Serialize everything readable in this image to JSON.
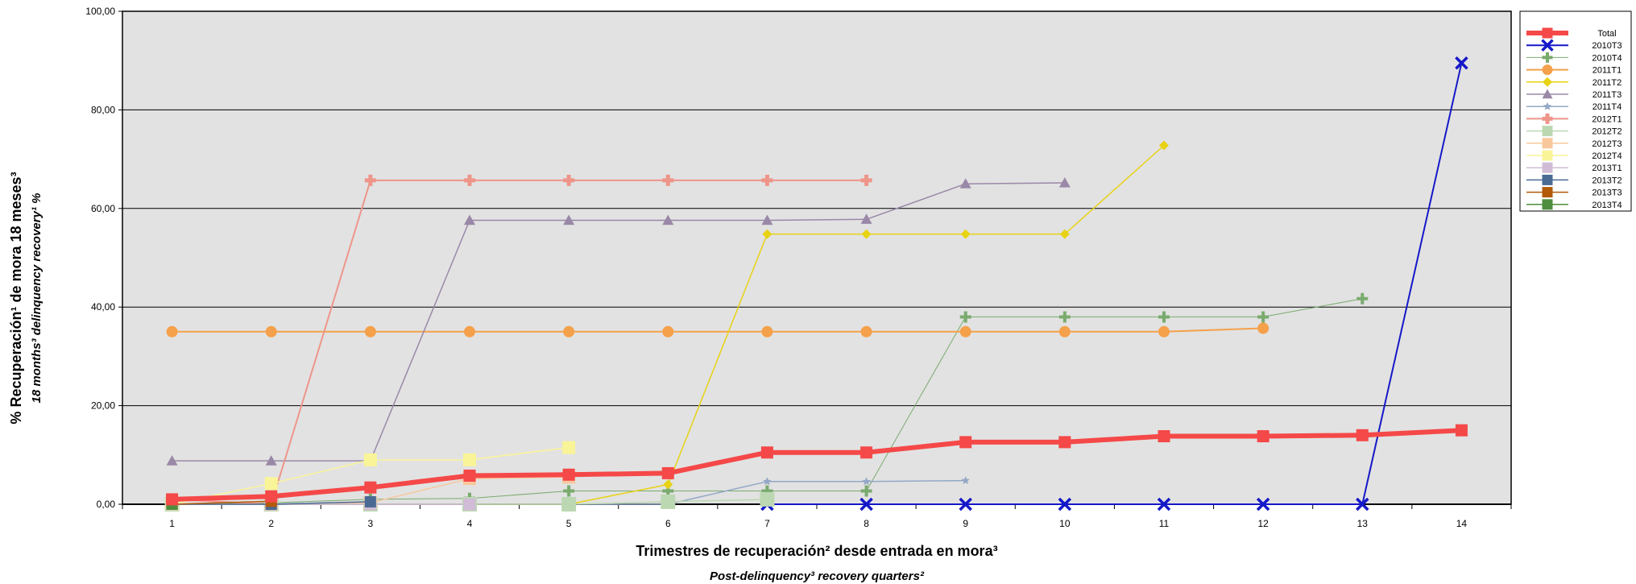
{
  "chart_data": {
    "type": "line",
    "title": "",
    "ylabel": "% Recuperación¹ de mora 18 meses³",
    "ylabel_sub": "18 months³ delinquency recovery¹ %",
    "xlabel": "Trimestres de recuperación² desde entrada en mora³",
    "xlabel_sub": "Post-delinquency³ recovery quarters²",
    "x": [
      1,
      2,
      3,
      4,
      5,
      6,
      7,
      8,
      9,
      10,
      11,
      12,
      13,
      14
    ],
    "ylim": [
      0,
      100
    ],
    "yticks": [
      "0,00",
      "20,00",
      "40,00",
      "60,00",
      "80,00",
      "100,00"
    ],
    "grid": true,
    "legend_position": "right",
    "background": "#e2e2e2",
    "series": [
      {
        "name": "Total",
        "color": "#f54848",
        "marker": "square",
        "width": 6,
        "size": 15,
        "values": [
          1.0,
          1.6,
          3.4,
          5.8,
          6.0,
          6.3,
          10.5,
          10.5,
          12.6,
          12.6,
          13.8,
          13.8,
          14.0,
          15.0
        ]
      },
      {
        "name": "2010T3",
        "color": "#1518c8",
        "marker": "x",
        "width": 2,
        "size": 14,
        "values": [
          null,
          null,
          null,
          null,
          null,
          null,
          0.0,
          0.0,
          0.0,
          0.0,
          0.0,
          0.0,
          0.0,
          89.5
        ]
      },
      {
        "name": "2010T4",
        "color": "#7aab6e",
        "marker": "plus",
        "width": 1,
        "size": 14,
        "values": [
          0.0,
          0.3,
          1.0,
          1.2,
          2.7,
          2.7,
          2.7,
          2.7,
          38.0,
          38.0,
          38.0,
          38.0,
          41.7,
          null
        ]
      },
      {
        "name": "2011T1",
        "color": "#f5a04a",
        "marker": "circle",
        "width": 2,
        "size": 14,
        "values": [
          35.0,
          35.0,
          35.0,
          35.0,
          35.0,
          35.0,
          35.0,
          35.0,
          35.0,
          35.0,
          35.0,
          35.7,
          null,
          null
        ]
      },
      {
        "name": "2011T2",
        "color": "#e8d214",
        "marker": "diamond",
        "width": 1.5,
        "size": 12,
        "values": [
          0.0,
          0.0,
          0.0,
          0.0,
          0.0,
          4.0,
          54.8,
          54.8,
          54.8,
          54.8,
          72.8,
          null,
          null,
          null
        ]
      },
      {
        "name": "2011T3",
        "color": "#9a88a8",
        "marker": "triangle",
        "width": 1.5,
        "size": 14,
        "values": [
          8.8,
          8.8,
          8.8,
          57.6,
          57.6,
          57.6,
          57.6,
          57.8,
          65.0,
          65.2,
          null,
          null,
          null,
          null
        ]
      },
      {
        "name": "2011T4",
        "color": "#93a8c6",
        "marker": "star",
        "width": 1.5,
        "size": 11,
        "values": [
          0.0,
          0.0,
          0.0,
          0.0,
          0.0,
          0.0,
          4.6,
          4.6,
          4.8,
          null,
          null,
          null,
          null,
          null
        ]
      },
      {
        "name": "2012T1",
        "color": "#ee958a",
        "marker": "plus-bold",
        "width": 2,
        "size": 14,
        "values": [
          1.0,
          0.0,
          65.7,
          65.7,
          65.7,
          65.7,
          65.7,
          65.7,
          null,
          null,
          null,
          null,
          null,
          null
        ]
      },
      {
        "name": "2012T2",
        "color": "#bcd8b2",
        "marker": "square",
        "width": 1.5,
        "size": 18,
        "values": [
          0.0,
          0.0,
          0.0,
          0.0,
          0.0,
          0.5,
          1.0,
          null,
          null,
          null,
          null,
          null,
          null,
          null
        ]
      },
      {
        "name": "2012T3",
        "color": "#f8c89c",
        "marker": "square",
        "width": 1.5,
        "size": 16,
        "values": [
          0.0,
          0.0,
          0.3,
          5.2,
          5.5,
          null,
          null,
          null,
          null,
          null,
          null,
          null,
          null,
          null
        ]
      },
      {
        "name": "2012T4",
        "color": "#faf498",
        "marker": "square",
        "width": 1.5,
        "size": 16,
        "values": [
          0.0,
          4.2,
          9.0,
          9.0,
          11.5,
          null,
          null,
          null,
          null,
          null,
          null,
          null,
          null,
          null
        ]
      },
      {
        "name": "2013T1",
        "color": "#d0bcd6",
        "marker": "square",
        "width": 1.5,
        "size": 15,
        "values": [
          0.0,
          0.0,
          0.0,
          0.0,
          null,
          null,
          null,
          null,
          null,
          null,
          null,
          null,
          null,
          null
        ]
      },
      {
        "name": "2013T2",
        "color": "#4a6a94",
        "marker": "square",
        "width": 1.5,
        "size": 14,
        "values": [
          0.0,
          0.0,
          0.5,
          null,
          null,
          null,
          null,
          null,
          null,
          null,
          null,
          null,
          null,
          null
        ]
      },
      {
        "name": "2013T3",
        "color": "#b25a0a",
        "marker": "square",
        "width": 1.5,
        "size": 14,
        "values": [
          0.0,
          0.6,
          null,
          null,
          null,
          null,
          null,
          null,
          null,
          null,
          null,
          null,
          null,
          null
        ]
      },
      {
        "name": "2013T4",
        "color": "#4e8e3e",
        "marker": "square",
        "width": 1.5,
        "size": 14,
        "values": [
          0.0,
          null,
          null,
          null,
          null,
          null,
          null,
          null,
          null,
          null,
          null,
          null,
          null,
          null
        ]
      }
    ]
  }
}
